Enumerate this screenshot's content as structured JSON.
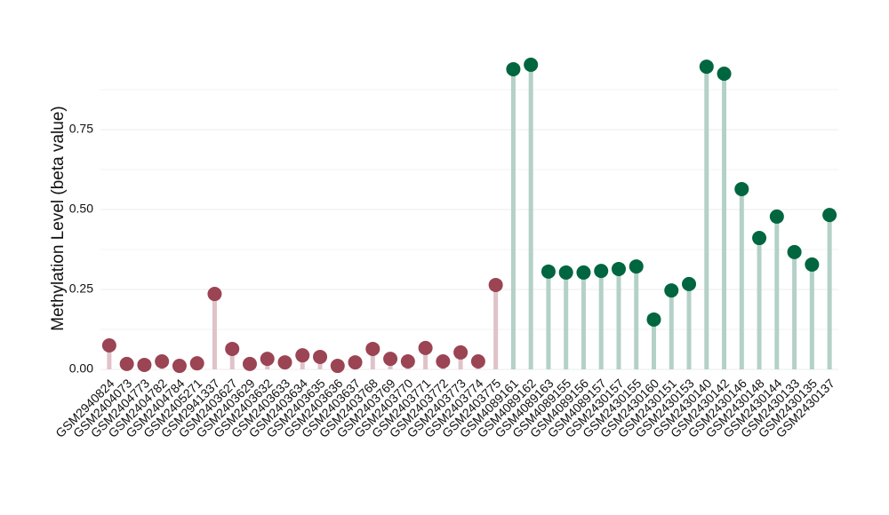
{
  "chart_data": {
    "type": "lollipop",
    "y_axis_label": "Methylation Level (beta value)",
    "categories": [
      "GSM2940824",
      "GSM2404073",
      "GSM2404773",
      "GSM2404782",
      "GSM2404784",
      "GSM2405271",
      "GSM2941337",
      "GSM2403627",
      "GSM2403629",
      "GSM2403632",
      "GSM2403633",
      "GSM2403634",
      "GSM2403635",
      "GSM2403636",
      "GSM2403637",
      "GSM2403768",
      "GSM2403769",
      "GSM2403770",
      "GSM2403771",
      "GSM2403772",
      "GSM2403773",
      "GSM2403774",
      "GSM2403775",
      "GSM4089161",
      "GSM4089162",
      "GSM4089163",
      "GSM4089155",
      "GSM4089156",
      "GSM4089157",
      "GSM2430157",
      "GSM2430155",
      "GSM2430160",
      "GSM2430151",
      "GSM2430153",
      "GSM2430140",
      "GSM2430142",
      "GSM2430146",
      "GSM2430148",
      "GSM2430144",
      "GSM2430133",
      "GSM2430135",
      "GSM2430137"
    ],
    "values": [
      0.075,
      0.017,
      0.014,
      0.025,
      0.011,
      0.019,
      0.236,
      0.064,
      0.017,
      0.033,
      0.022,
      0.044,
      0.039,
      0.011,
      0.022,
      0.064,
      0.033,
      0.025,
      0.067,
      0.025,
      0.053,
      0.025,
      0.264,
      0.939,
      0.953,
      0.306,
      0.303,
      0.303,
      0.308,
      0.314,
      0.322,
      0.156,
      0.247,
      0.267,
      0.947,
      0.925,
      0.564,
      0.411,
      0.478,
      0.367,
      0.328,
      0.483
    ],
    "colors": [
      "#9b4453",
      "#9b4453",
      "#9b4453",
      "#9b4453",
      "#9b4453",
      "#9b4453",
      "#9b4453",
      "#9b4453",
      "#9b4453",
      "#9b4453",
      "#9b4453",
      "#9b4453",
      "#9b4453",
      "#9b4453",
      "#9b4453",
      "#9b4453",
      "#9b4453",
      "#9b4453",
      "#9b4453",
      "#9b4453",
      "#9b4453",
      "#9b4453",
      "#9b4453",
      "#00663f",
      "#00663f",
      "#00663f",
      "#00663f",
      "#00663f",
      "#00663f",
      "#00663f",
      "#00663f",
      "#00663f",
      "#00663f",
      "#00663f",
      "#00663f",
      "#00663f",
      "#00663f",
      "#00663f",
      "#00663f",
      "#00663f",
      "#00663f",
      "#00663f"
    ],
    "stem_colors": [
      "#dfc3c8",
      "#dfc3c8",
      "#dfc3c8",
      "#dfc3c8",
      "#dfc3c8",
      "#dfc3c8",
      "#dfc3c8",
      "#dfc3c8",
      "#dfc3c8",
      "#dfc3c8",
      "#dfc3c8",
      "#dfc3c8",
      "#dfc3c8",
      "#dfc3c8",
      "#dfc3c8",
      "#dfc3c8",
      "#dfc3c8",
      "#dfc3c8",
      "#dfc3c8",
      "#dfc3c8",
      "#dfc3c8",
      "#dfc3c8",
      "#dfc3c8",
      "#b3d1c7",
      "#b3d1c7",
      "#b3d1c7",
      "#b3d1c7",
      "#b3d1c7",
      "#b3d1c7",
      "#b3d1c7",
      "#b3d1c7",
      "#b3d1c7",
      "#b3d1c7",
      "#b3d1c7",
      "#b3d1c7",
      "#b3d1c7",
      "#b3d1c7",
      "#b3d1c7",
      "#b3d1c7",
      "#b3d1c7",
      "#b3d1c7",
      "#b3d1c7"
    ],
    "ylim": [
      0,
      1
    ],
    "yticks": [
      {
        "value": 0,
        "label": "0.00"
      },
      {
        "value": 0.25,
        "label": "0.25"
      },
      {
        "value": 0.5,
        "label": "0.50"
      },
      {
        "value": 0.75,
        "label": "0.75"
      }
    ],
    "minor_yticks": [
      0.125,
      0.375,
      0.625,
      0.875
    ],
    "grid": true
  }
}
